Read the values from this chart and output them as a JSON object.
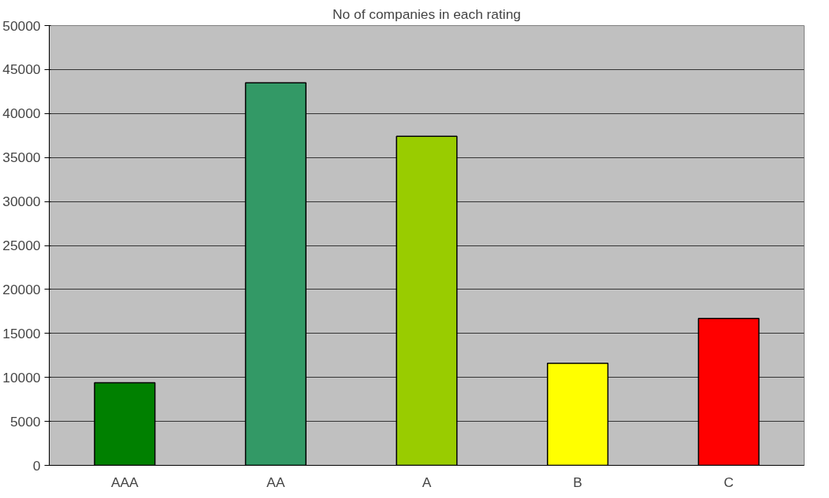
{
  "chart_data": {
    "type": "bar",
    "title": "No of companies in each rating",
    "categories": [
      "AAA",
      "AA",
      "A",
      "B",
      "C"
    ],
    "values": [
      9400,
      43500,
      37400,
      11600,
      16700
    ],
    "colors": [
      "#008000",
      "#339966",
      "#99cc00",
      "#ffff00",
      "#ff0000"
    ],
    "ylim": [
      0,
      50000
    ],
    "yticks": [
      0,
      5000,
      10000,
      15000,
      20000,
      25000,
      30000,
      35000,
      40000,
      45000,
      50000
    ],
    "grid": "y"
  }
}
